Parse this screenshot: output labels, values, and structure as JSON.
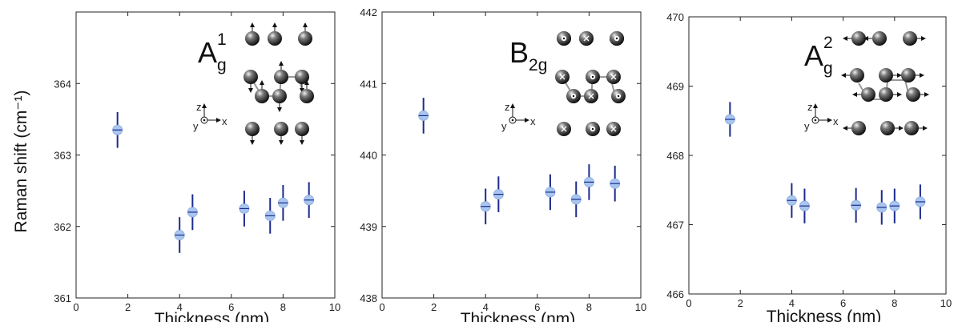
{
  "chart_data": [
    {
      "type": "scatter",
      "mode_label": "A",
      "mode_sub": "g",
      "mode_sup": "1",
      "xlabel": "Thickness (nm)",
      "ylabel": "Raman shift (cm⁻¹)",
      "xlim": [
        0,
        10
      ],
      "ylim": [
        361,
        365
      ],
      "xticks": [
        "0",
        "2",
        "4",
        "6",
        "8",
        "10"
      ],
      "yticks": [
        "361",
        "362",
        "363",
        "364"
      ],
      "x": [
        1.6,
        4.0,
        4.5,
        6.5,
        7.5,
        8.0,
        9.0
      ],
      "y": [
        363.35,
        361.88,
        362.2,
        362.25,
        362.15,
        362.33,
        362.37
      ],
      "err": [
        0.25,
        0.25,
        0.25,
        0.25,
        0.25,
        0.25,
        0.25
      ],
      "marker_color": "#a9c6f0",
      "error_color": "#1c2a8c",
      "inset_axes": {
        "z": "z",
        "y": "y",
        "x": "x"
      }
    },
    {
      "type": "scatter",
      "mode_label": "B",
      "mode_sub": "2g",
      "mode_sup": "",
      "xlabel": "Thickness (nm)",
      "ylabel": "",
      "xlim": [
        0,
        10
      ],
      "ylim": [
        438,
        442
      ],
      "xticks": [
        "0",
        "2",
        "4",
        "6",
        "8",
        "10"
      ],
      "yticks": [
        "438",
        "439",
        "440",
        "441",
        "442"
      ],
      "x": [
        1.6,
        4.0,
        4.5,
        6.5,
        7.5,
        8.0,
        9.0
      ],
      "y": [
        440.55,
        439.28,
        439.45,
        439.48,
        439.38,
        439.62,
        439.6
      ],
      "err": [
        0.25,
        0.25,
        0.25,
        0.25,
        0.25,
        0.25,
        0.25
      ],
      "marker_color": "#a9c6f0",
      "error_color": "#1c2a8c",
      "inset_axes": {
        "z": "z",
        "y": "y",
        "x": "x"
      }
    },
    {
      "type": "scatter",
      "mode_label": "A",
      "mode_sub": "g",
      "mode_sup": "2",
      "xlabel": "Thickness (nm)",
      "ylabel": "",
      "xlim": [
        0,
        10
      ],
      "ylim": [
        466,
        470
      ],
      "xticks": [
        "0",
        "2",
        "4",
        "6",
        "8",
        "10"
      ],
      "yticks": [
        "466",
        "467",
        "468",
        "469",
        "470"
      ],
      "x": [
        1.6,
        4.0,
        4.5,
        6.5,
        7.5,
        8.0,
        9.0
      ],
      "y": [
        468.52,
        467.35,
        467.27,
        467.28,
        467.25,
        467.27,
        467.33
      ],
      "err": [
        0.25,
        0.25,
        0.25,
        0.25,
        0.25,
        0.25,
        0.25
      ],
      "marker_color": "#a9c6f0",
      "error_color": "#1c2a8c",
      "inset_axes": {
        "z": "z",
        "y": "y",
        "x": "x"
      }
    }
  ]
}
